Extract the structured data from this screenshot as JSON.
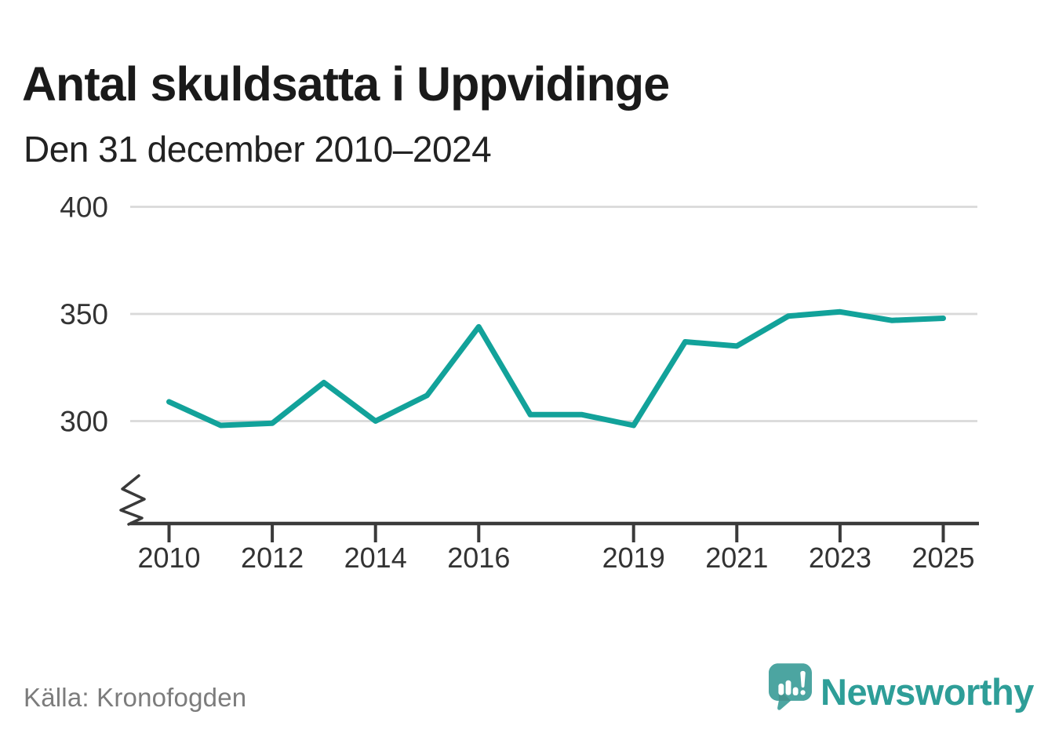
{
  "header": {
    "title": "Antal skuldsatta i Uppvidinge",
    "subtitle": "Den 31 december 2010–2024"
  },
  "chart_data": {
    "type": "line",
    "title": "Antal skuldsatta i Uppvidinge",
    "subtitle": "Den 31 december 2010–2024",
    "x": [
      2010,
      2011,
      2012,
      2013,
      2014,
      2015,
      2016,
      2017,
      2018,
      2019,
      2020,
      2021,
      2022,
      2023,
      2024,
      2025
    ],
    "values": [
      309,
      298,
      299,
      318,
      300,
      312,
      344,
      303,
      303,
      298,
      337,
      335,
      349,
      351,
      347,
      348
    ],
    "x_tick_labels": [
      "2010",
      "2012",
      "2014",
      "2016",
      "2019",
      "2021",
      "2023",
      "2025"
    ],
    "y_tick_labels": [
      "300",
      "350",
      "400"
    ],
    "y_gridlines": [
      300,
      350,
      400
    ],
    "ylim": [
      252,
      410
    ],
    "xlabel": "",
    "ylabel": "",
    "grid": "horizontal",
    "legend": "none",
    "y_axis_break": true,
    "line_color": "#12A29A"
  },
  "footer": {
    "source": "Källa: Kronofogden",
    "logo_text": "Newsworthy"
  },
  "colors": {
    "line": "#12A29A",
    "axis": "#3A3A3A",
    "grid": "#D9D9D9",
    "title_text": "#1A1A1A",
    "subtitle_text": "#222222",
    "tick_label": "#333333",
    "source_text": "#7C7C7C",
    "logo_badge": "#4CA5A1",
    "logo_text": "#2E9E98"
  }
}
